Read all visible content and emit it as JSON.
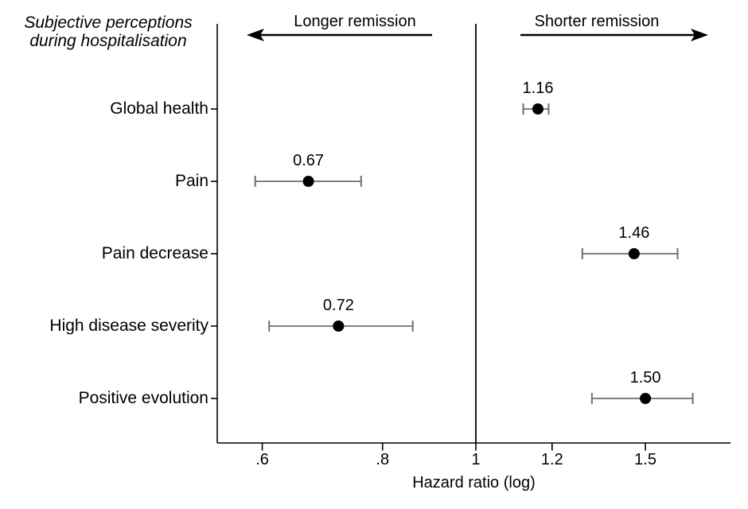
{
  "chart_data": {
    "type": "scatter",
    "subtype": "forest-plot",
    "title_lines": [
      "Subjective perceptions",
      "during hospitalisation"
    ],
    "xlabel": "Hazard ratio (log)",
    "x_scale": "log",
    "x_range": [
      0.53,
      1.85
    ],
    "reference_line": 1,
    "grid": false,
    "direction_labels": {
      "left": "Longer remission",
      "right": "Shorter remission"
    },
    "x_ticks": [
      {
        "label": ".6",
        "value": 0.6
      },
      {
        "label": ".8",
        "value": 0.8
      },
      {
        "label": "1",
        "value": 1.0
      },
      {
        "label": "1.2",
        "value": 1.2
      },
      {
        "label": "1.5",
        "value": 1.5
      }
    ],
    "rows": [
      {
        "label": "Global health",
        "hr": 1.16,
        "hr_label": "1.16",
        "ci_low": 1.12,
        "ci_high": 1.19
      },
      {
        "label": "Pain",
        "hr": 0.67,
        "hr_label": "0.67",
        "ci_low": 0.59,
        "ci_high": 0.76
      },
      {
        "label": "Pain decrease",
        "hr": 1.46,
        "hr_label": "1.46",
        "ci_low": 1.29,
        "ci_high": 1.62
      },
      {
        "label": "High disease severity",
        "hr": 0.72,
        "hr_label": "0.72",
        "ci_low": 0.61,
        "ci_high": 0.86
      },
      {
        "label": "Positive evolution",
        "hr": 1.5,
        "hr_label": "1.50",
        "ci_low": 1.32,
        "ci_high": 1.68
      }
    ],
    "colors": {
      "point": "#000000",
      "error_bar": "#808080",
      "error_bar_cap": "#707070",
      "axis": "#000000",
      "reference_line": "#1a1a1a",
      "arrow": "#000000",
      "text": "#000000",
      "background": "#ffffff"
    }
  }
}
